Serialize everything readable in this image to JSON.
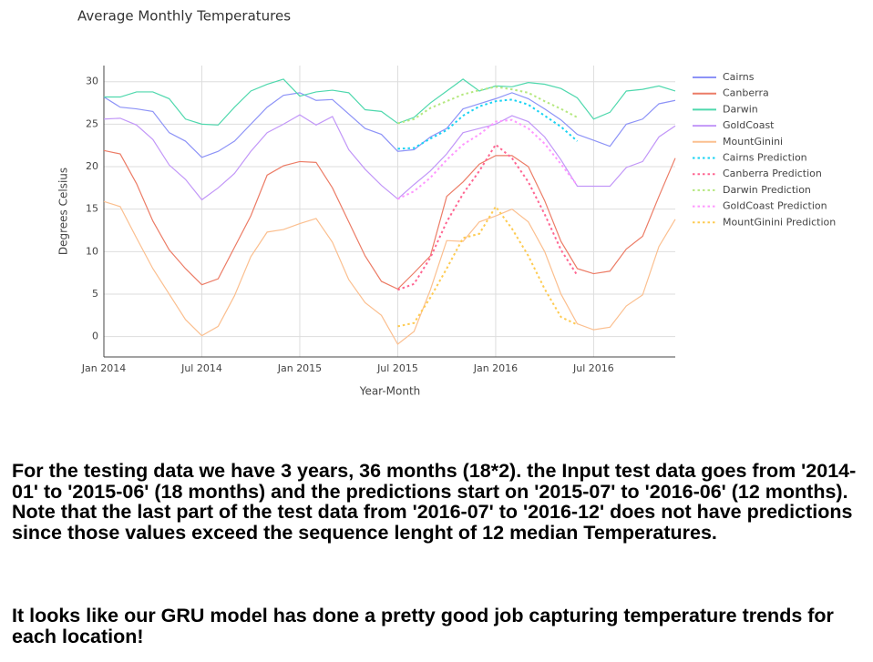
{
  "chart_data": {
    "type": "line",
    "title": "Average Monthly Temperatures",
    "x_label": "Year-Month",
    "y_label": "Degrees Celsius",
    "x": [
      "2014-01",
      "2014-02",
      "2014-03",
      "2014-04",
      "2014-05",
      "2014-06",
      "2014-07",
      "2014-08",
      "2014-09",
      "2014-10",
      "2014-11",
      "2014-12",
      "2015-01",
      "2015-02",
      "2015-03",
      "2015-04",
      "2015-05",
      "2015-06",
      "2015-07",
      "2015-08",
      "2015-09",
      "2015-10",
      "2015-11",
      "2015-12",
      "2016-01",
      "2016-02",
      "2016-03",
      "2016-04",
      "2016-05",
      "2016-06",
      "2016-07",
      "2016-08",
      "2016-09",
      "2016-10",
      "2016-11",
      "2016-12"
    ],
    "xlim": [
      "2014-01",
      "2016-12"
    ],
    "xticks": [
      {
        "value": "2014-01",
        "label": "Jan 2014"
      },
      {
        "value": "2014-07",
        "label": "Jul 2014"
      },
      {
        "value": "2015-01",
        "label": "Jan 2015"
      },
      {
        "value": "2015-07",
        "label": "Jul 2015"
      },
      {
        "value": "2016-01",
        "label": "Jan 2016"
      },
      {
        "value": "2016-07",
        "label": "Jul 2016"
      }
    ],
    "ylim": [
      -2.4,
      31.9
    ],
    "yticks": [
      0,
      5,
      10,
      15,
      20,
      25,
      30
    ],
    "grid": true,
    "legend": "right",
    "series": [
      {
        "name": "Cairns",
        "color": "#8d93f7",
        "dash": false,
        "values": [
          28.2,
          27.0,
          26.8,
          26.5,
          24.0,
          23.0,
          21.1,
          21.8,
          23.0,
          25.0,
          27.0,
          28.4,
          28.7,
          27.8,
          27.9,
          26.2,
          24.5,
          23.8,
          21.8,
          22.0,
          23.5,
          24.5,
          26.8,
          27.4,
          28.0,
          28.7,
          28.0,
          26.8,
          25.5,
          23.8,
          23.1,
          22.4,
          25.0,
          25.6,
          27.4,
          27.8
        ]
      },
      {
        "name": "Canberra",
        "color": "#ec7c66",
        "dash": false,
        "values": [
          21.9,
          21.5,
          18.0,
          13.6,
          10.2,
          8.0,
          6.1,
          6.8,
          10.5,
          14.2,
          19.0,
          20.1,
          20.6,
          20.5,
          17.5,
          13.5,
          9.5,
          6.5,
          5.6,
          7.5,
          9.5,
          16.5,
          18.2,
          20.3,
          21.3,
          21.3,
          20.0,
          16.0,
          11.2,
          8.0,
          7.4,
          7.7,
          10.3,
          11.8,
          16.5,
          21.0
        ]
      },
      {
        "name": "Darwin",
        "color": "#4fd8ad",
        "dash": false,
        "values": [
          28.2,
          28.2,
          28.8,
          28.8,
          28.0,
          25.6,
          25.0,
          24.9,
          27.0,
          28.9,
          29.7,
          30.3,
          28.3,
          28.8,
          29.0,
          28.7,
          26.7,
          26.5,
          25.1,
          25.8,
          27.5,
          28.9,
          30.3,
          28.9,
          29.5,
          29.4,
          29.9,
          29.7,
          29.2,
          28.1,
          25.6,
          26.4,
          28.9,
          29.1,
          29.5,
          28.9
        ]
      },
      {
        "name": "GoldCoast",
        "color": "#c297f8",
        "dash": false,
        "values": [
          25.6,
          25.7,
          24.9,
          23.2,
          20.2,
          18.5,
          16.1,
          17.5,
          19.2,
          21.8,
          24.0,
          25.0,
          26.1,
          24.9,
          25.9,
          22.0,
          19.7,
          17.8,
          16.2,
          17.9,
          19.5,
          21.5,
          24.0,
          24.5,
          25.0,
          26.0,
          25.3,
          23.5,
          20.8,
          17.7,
          17.7,
          17.7,
          19.9,
          20.6,
          23.5,
          24.8
        ]
      },
      {
        "name": "MountGinini",
        "color": "#fbbf8f",
        "dash": false,
        "values": [
          15.9,
          15.3,
          11.6,
          8.0,
          5.0,
          2.0,
          0.1,
          1.2,
          4.8,
          9.4,
          12.3,
          12.6,
          13.3,
          13.9,
          11.1,
          6.7,
          4.0,
          2.5,
          -0.9,
          0.6,
          5.5,
          11.3,
          11.2,
          13.5,
          14.2,
          15.0,
          13.5,
          10.0,
          5.0,
          1.5,
          0.8,
          1.1,
          3.6,
          4.9,
          10.6,
          13.8
        ]
      },
      {
        "name": "Cairns Prediction",
        "color": "#19d3f3",
        "dash": true,
        "values": [
          null,
          null,
          null,
          null,
          null,
          null,
          null,
          null,
          null,
          null,
          null,
          null,
          null,
          null,
          null,
          null,
          null,
          null,
          22.1,
          22.2,
          23.3,
          24.3,
          26.0,
          27.1,
          27.7,
          27.9,
          27.3,
          26.0,
          24.7,
          23.0,
          null,
          null,
          null,
          null,
          null,
          null
        ]
      },
      {
        "name": "Canberra Prediction",
        "color": "#ff6692",
        "dash": true,
        "values": [
          null,
          null,
          null,
          null,
          null,
          null,
          null,
          null,
          null,
          null,
          null,
          null,
          null,
          null,
          null,
          null,
          null,
          null,
          5.5,
          6.2,
          9.3,
          13.5,
          16.8,
          19.5,
          22.6,
          21.0,
          18.2,
          14.4,
          10.2,
          7.2,
          null,
          null,
          null,
          null,
          null,
          null
        ]
      },
      {
        "name": "Darwin Prediction",
        "color": "#b6e880",
        "dash": true,
        "values": [
          null,
          null,
          null,
          null,
          null,
          null,
          null,
          null,
          null,
          null,
          null,
          null,
          null,
          null,
          null,
          null,
          null,
          null,
          25.1,
          25.6,
          26.9,
          27.7,
          28.5,
          29.0,
          29.4,
          29.1,
          28.7,
          27.7,
          26.8,
          25.8,
          null,
          null,
          null,
          null,
          null,
          null
        ]
      },
      {
        "name": "GoldCoast Prediction",
        "color": "#ff97ff",
        "dash": true,
        "values": [
          null,
          null,
          null,
          null,
          null,
          null,
          null,
          null,
          null,
          null,
          null,
          null,
          null,
          null,
          null,
          null,
          null,
          null,
          16.2,
          17.1,
          18.7,
          20.8,
          22.6,
          23.8,
          25.3,
          25.5,
          24.5,
          22.7,
          20.3,
          17.8,
          null,
          null,
          null,
          null,
          null,
          null
        ]
      },
      {
        "name": "MountGinini Prediction",
        "color": "#fecb52",
        "dash": true,
        "values": [
          null,
          null,
          null,
          null,
          null,
          null,
          null,
          null,
          null,
          null,
          null,
          null,
          null,
          null,
          null,
          null,
          null,
          null,
          1.2,
          1.6,
          4.6,
          8.0,
          11.6,
          12.1,
          15.3,
          12.7,
          9.5,
          5.6,
          2.3,
          1.4,
          null,
          null,
          null,
          null,
          null,
          null
        ]
      }
    ]
  },
  "text": [
    "For the testing data we have 3 years, 36 months (18*2). the Input test data goes from '2014-01' to '2015-06' (18 months) and the predictions start on '2015-07' to '2016-06' (12 months). Note that the last part of the test data from '2016-07' to '2016-12' does not have predictions since those values exceed the sequence lenght of 12 median Temperatures.",
    "It looks like our GRU model has done a pretty good job capturing temperature trends for each location!"
  ]
}
